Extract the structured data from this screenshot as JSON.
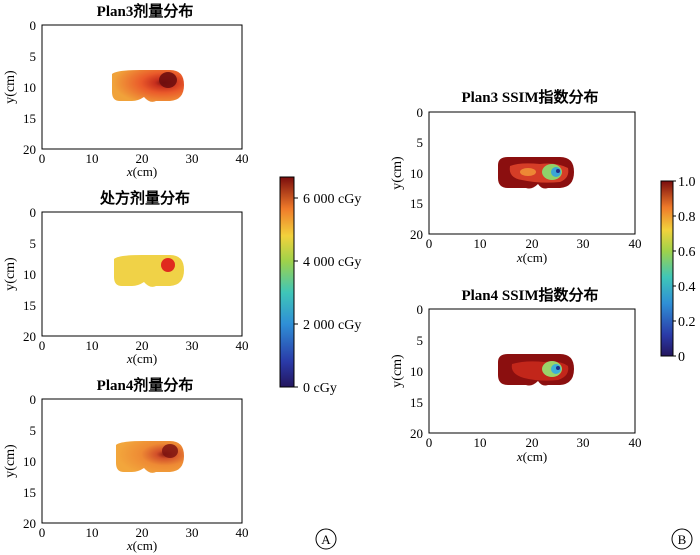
{
  "titles": {
    "a1": "Plan3剂量分布",
    "a2": "处方剂量分布",
    "a3": "Plan4剂量分布",
    "b1": "Plan3 SSIM指数分布",
    "b2": "Plan4 SSIM指数分布"
  },
  "axes": {
    "xlabel_var": "x",
    "xlabel_unit": "(cm)",
    "ylabel": "y(cm)",
    "xticks": [
      "0",
      "10",
      "20",
      "30",
      "40"
    ],
    "yticks": [
      "0",
      "5",
      "10",
      "15",
      "20"
    ]
  },
  "colorbar_a": {
    "ticks": [
      "6 000 cGy",
      "4 000 cGy",
      "2 000 cGy",
      "0 cGy"
    ]
  },
  "colorbar_b": {
    "ticks": [
      "1.0",
      "0.8",
      "0.6",
      "0.4",
      "0.2",
      "0"
    ]
  },
  "panel_labels": {
    "a": "A",
    "b": "B"
  },
  "colors": {
    "dose_high": "#7a1010",
    "dose_mid": "#e8432a",
    "dose_low": "#f2a43a",
    "prescription": "#f0d247",
    "ssim_max": "#8b0f0f"
  }
}
